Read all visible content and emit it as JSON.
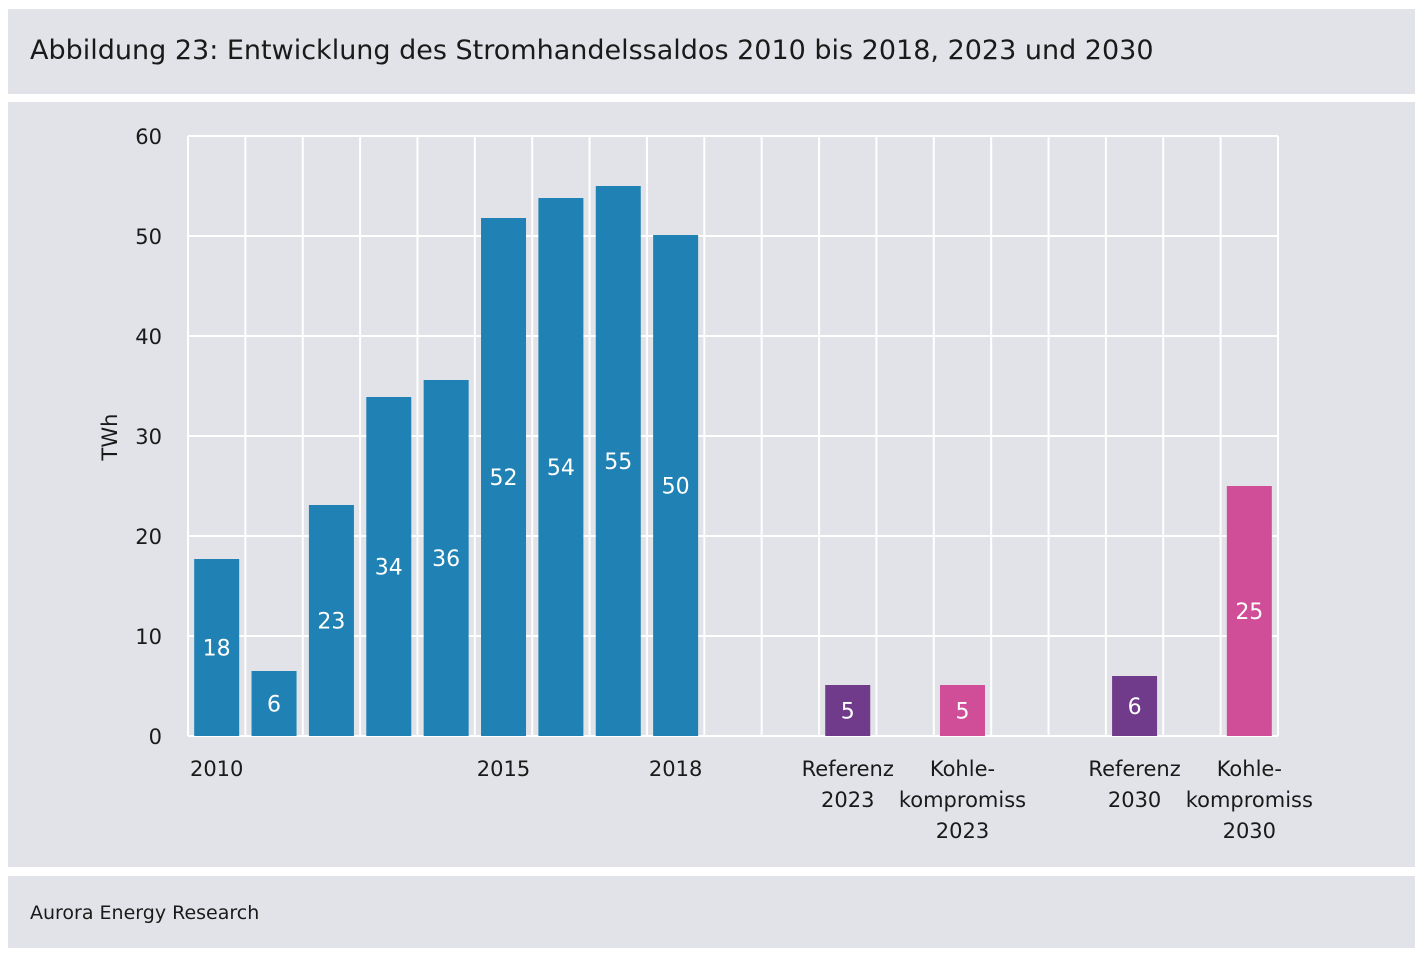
{
  "title": "Abbildung 23: Entwicklung des Stromhandelssaldos 2010 bis 2018, 2023 und 2030",
  "source": "Aurora Energy Research",
  "colors": {
    "historical": "#2081b4",
    "referenz": "#6f3b8a",
    "kohlekompromiss": "#d04d97",
    "grid": "#ffffff",
    "background": "#e2e3e8"
  },
  "chart_data": {
    "type": "bar",
    "ylabel": "TWh",
    "xlabel": "",
    "ylim": [
      0,
      60
    ],
    "yticks": [
      0,
      10,
      20,
      30,
      40,
      50,
      60
    ],
    "grid": true,
    "categories": [
      {
        "label": [
          "2010"
        ],
        "value": 17.7,
        "data_label": "18",
        "color_key": "historical"
      },
      {
        "label": [],
        "value": 6.5,
        "data_label": "6",
        "color_key": "historical"
      },
      {
        "label": [],
        "value": 23.1,
        "data_label": "23",
        "color_key": "historical"
      },
      {
        "label": [],
        "value": 33.9,
        "data_label": "34",
        "color_key": "historical"
      },
      {
        "label": [],
        "value": 35.6,
        "data_label": "36",
        "color_key": "historical"
      },
      {
        "label": [
          "2015"
        ],
        "value": 51.8,
        "data_label": "52",
        "color_key": "historical"
      },
      {
        "label": [],
        "value": 53.8,
        "data_label": "54",
        "color_key": "historical"
      },
      {
        "label": [],
        "value": 55.0,
        "data_label": "55",
        "color_key": "historical"
      },
      {
        "label": [
          "2018"
        ],
        "value": 50.1,
        "data_label": "50",
        "color_key": "historical"
      },
      {
        "label": [],
        "value": null,
        "data_label": "",
        "color_key": ""
      },
      {
        "label": [],
        "value": null,
        "data_label": "",
        "color_key": ""
      },
      {
        "label": [
          "Referenz",
          "2023"
        ],
        "value": 5.1,
        "data_label": "5",
        "color_key": "referenz"
      },
      {
        "label": [],
        "value": null,
        "data_label": "",
        "color_key": ""
      },
      {
        "label": [
          "Kohle-",
          "kompromiss",
          "2023"
        ],
        "value": 5.1,
        "data_label": "5",
        "color_key": "kohlekompromiss"
      },
      {
        "label": [],
        "value": null,
        "data_label": "",
        "color_key": ""
      },
      {
        "label": [],
        "value": null,
        "data_label": "",
        "color_key": ""
      },
      {
        "label": [
          "Referenz",
          "2030"
        ],
        "value": 6.0,
        "data_label": "6",
        "color_key": "referenz"
      },
      {
        "label": [],
        "value": null,
        "data_label": "",
        "color_key": ""
      },
      {
        "label": [
          "Kohle-",
          "kompromiss",
          "2030"
        ],
        "value": 25.0,
        "data_label": "25",
        "color_key": "kohlekompromiss"
      }
    ]
  }
}
